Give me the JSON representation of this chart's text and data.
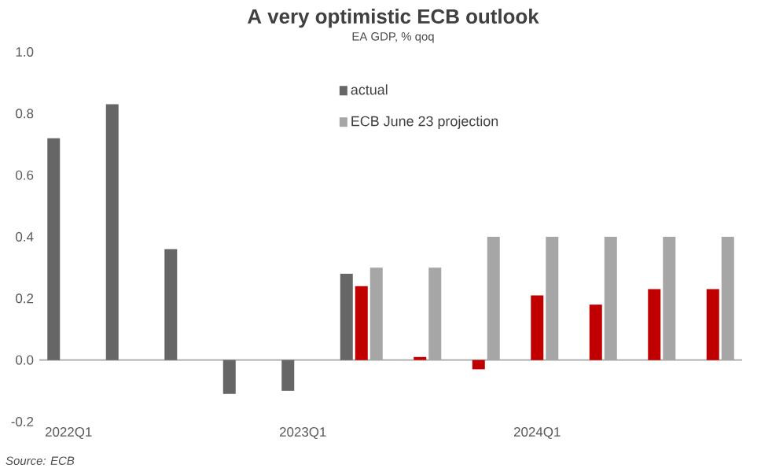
{
  "chart_data": {
    "type": "bar",
    "title": "A very optimistic ECB outlook",
    "subtitle": "EA GDP, % qoq",
    "categories": [
      "2022Q1",
      null,
      null,
      null,
      "2023Q1",
      null,
      null,
      null,
      "2024Q1",
      null,
      null,
      null
    ],
    "series": [
      {
        "name": "actual",
        "color": "#666666",
        "values": [
          0.72,
          0.83,
          0.36,
          -0.11,
          -0.1,
          0.28,
          null,
          null,
          null,
          null,
          null,
          null
        ]
      },
      {
        "color": "#c00000",
        "values": [
          null,
          null,
          null,
          null,
          null,
          0.24,
          0.01,
          -0.03,
          0.21,
          0.18,
          0.23,
          0.23
        ]
      },
      {
        "name": "ECB June 23 projection",
        "color": "#a6a6a6",
        "values": [
          null,
          null,
          null,
          null,
          null,
          0.3,
          0.3,
          0.4,
          0.4,
          0.4,
          0.4,
          0.4
        ]
      }
    ],
    "ylim": [
      -0.2,
      1.0
    ],
    "yticks": [
      -0.2,
      {
        "value": 0,
        "label": "0.0"
      },
      0.2,
      0.4,
      0.6,
      0.8,
      {
        "value": 1,
        "label": "1.0"
      }
    ],
    "legend": "top",
    "annotations": [
      "Source: ECB"
    ]
  }
}
